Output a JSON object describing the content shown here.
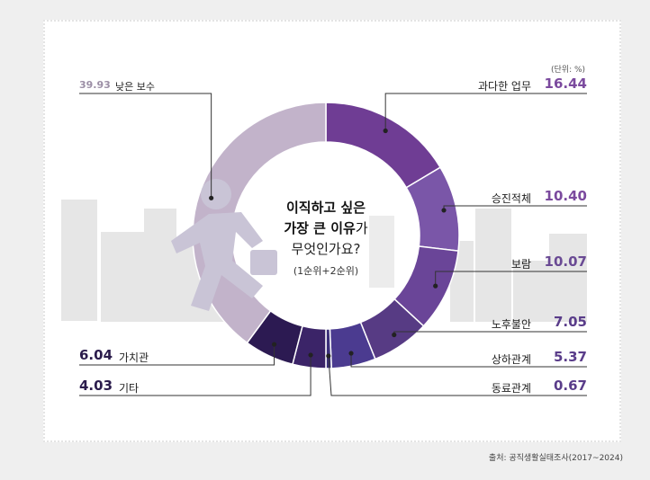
{
  "unit_label": "(단위: %)",
  "source": "출처: 공직생활실태조사(2017~2024)",
  "question": {
    "line1": "이직하고 싶은",
    "line2_bold": "가장 큰 이유",
    "line2_tail": "가",
    "line3": "무엇인가요?",
    "line4": "(1순위+2순위)"
  },
  "colors": {
    "bg": "#efefef",
    "low_pay": "#c2b3ca",
    "dark_purple": "#2a1a4a"
  },
  "chart_data": {
    "type": "pie",
    "subtype": "donut",
    "unit": "%",
    "slices": [
      {
        "label": "과다한 업무",
        "value": 16.44,
        "color": "#6f3d94",
        "text_color": "#7b4a9e"
      },
      {
        "label": "승진적체",
        "value": 10.4,
        "color": "#7a56a8",
        "text_color": "#7b4a9e"
      },
      {
        "label": "보람",
        "value": 10.07,
        "color": "#6a4598",
        "text_color": "#6a4a94"
      },
      {
        "label": "노후불안",
        "value": 7.05,
        "color": "#573b84",
        "text_color": "#5a3d8a"
      },
      {
        "label": "상하관계",
        "value": 5.37,
        "color": "#4b3b90",
        "text_color": "#5a3d8a"
      },
      {
        "label": "동료관계",
        "value": 0.67,
        "color": "#3b2f7a",
        "text_color": "#5a3d8a"
      },
      {
        "label": "기타",
        "value": 4.03,
        "color": "#3b2468",
        "text_color": "#2b1c4c"
      },
      {
        "label": "가치관",
        "value": 6.04,
        "color": "#2c1a52",
        "text_color": "#2b1c4c"
      },
      {
        "label": "낮은 보수",
        "value": 39.93,
        "color": "#c2b3ca",
        "text_color": "#9c8fa6"
      }
    ]
  }
}
